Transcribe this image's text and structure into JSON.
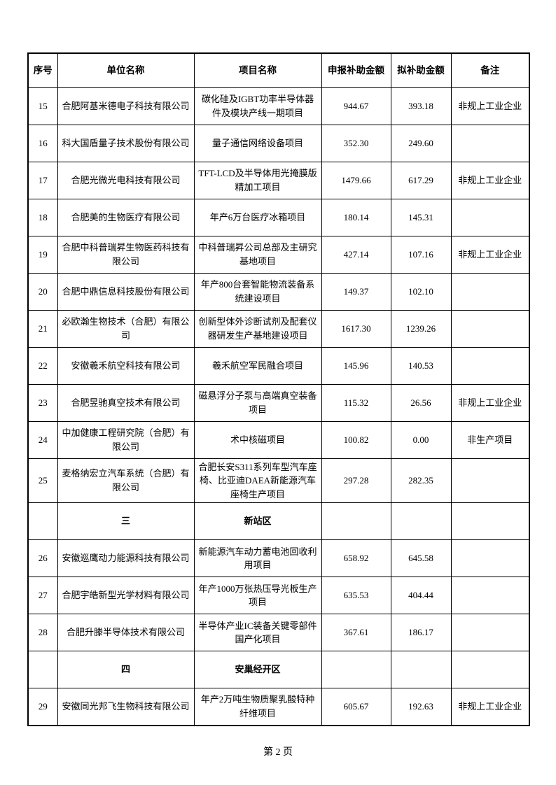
{
  "page": {
    "footer": "第 2 页"
  },
  "table": {
    "headers": [
      "序号",
      "单位名称",
      "项目名称",
      "申报补助金额",
      "拟补助金额",
      "备注"
    ],
    "rows": [
      {
        "type": "data",
        "cells": [
          "15",
          "合肥阿基米德电子科技有限公司",
          "碳化硅及IGBT功率半导体器件及模块产线一期项目",
          "944.67",
          "393.18",
          "非规上工业企业"
        ]
      },
      {
        "type": "data",
        "cells": [
          "16",
          "科大国盾量子技术股份有限公司",
          "量子通信网络设备项目",
          "352.30",
          "249.60",
          ""
        ]
      },
      {
        "type": "data",
        "cells": [
          "17",
          "合肥光微光电科技有限公司",
          "TFT-LCD及半导体用光掩膜版精加工项目",
          "1479.66",
          "617.29",
          "非规上工业企业"
        ]
      },
      {
        "type": "data",
        "cells": [
          "18",
          "合肥美的生物医疗有限公司",
          "年产6万台医疗冰箱项目",
          "180.14",
          "145.31",
          ""
        ]
      },
      {
        "type": "data",
        "cells": [
          "19",
          "合肥中科普瑞昇生物医药科技有限公司",
          "中科普瑞昇公司总部及主研究基地项目",
          "427.14",
          "107.16",
          "非规上工业企业"
        ]
      },
      {
        "type": "data",
        "cells": [
          "20",
          "合肥中鼎信息科技股份有限公司",
          "年产800台套智能物流装备系统建设项目",
          "149.37",
          "102.10",
          ""
        ]
      },
      {
        "type": "data",
        "cells": [
          "21",
          "必欧瀚生物技术（合肥）有限公司",
          "创新型体外诊断试剂及配套仪器研发生产基地建设项目",
          "1617.30",
          "1239.26",
          ""
        ]
      },
      {
        "type": "data",
        "cells": [
          "22",
          "安徽羲禾航空科技有限公司",
          "羲禾航空军民融合项目",
          "145.96",
          "140.53",
          ""
        ]
      },
      {
        "type": "data",
        "cells": [
          "23",
          "合肥昱驰真空技术有限公司",
          "磁悬浮分子泵与高端真空装备项目",
          "115.32",
          "26.56",
          "非规上工业企业"
        ]
      },
      {
        "type": "data",
        "cells": [
          "24",
          "中加健康工程研究院（合肥）有限公司",
          "术中核磁项目",
          "100.82",
          "0.00",
          "非生产项目"
        ]
      },
      {
        "type": "data",
        "cells": [
          "25",
          "麦格纳宏立汽车系统（合肥）有限公司",
          "合肥长安S311系列车型汽车座椅、比亚迪DAEA新能源汽车座椅生产项目",
          "297.28",
          "282.35",
          ""
        ]
      },
      {
        "type": "section",
        "cells": [
          "",
          "三",
          "新站区",
          "",
          "",
          ""
        ]
      },
      {
        "type": "data",
        "cells": [
          "26",
          "安徽巡鹰动力能源科技有限公司",
          "新能源汽车动力蓄电池回收利用项目",
          "658.92",
          "645.58",
          ""
        ]
      },
      {
        "type": "data",
        "cells": [
          "27",
          "合肥宇皓新型光学材料有限公司",
          "年产1000万张热压导光板生产项目",
          "635.53",
          "404.44",
          ""
        ]
      },
      {
        "type": "data",
        "cells": [
          "28",
          "合肥升滕半导体技术有限公司",
          "半导体产业IC装备关键零部件国产化项目",
          "367.61",
          "186.17",
          ""
        ]
      },
      {
        "type": "section",
        "cells": [
          "",
          "四",
          "安巢经开区",
          "",
          "",
          ""
        ]
      },
      {
        "type": "data",
        "cells": [
          "29",
          "安徽同光邦飞生物科技有限公司",
          "年产2万吨生物质聚乳酸特种纤维项目",
          "605.67",
          "192.63",
          "非规上工业企业"
        ]
      }
    ]
  }
}
